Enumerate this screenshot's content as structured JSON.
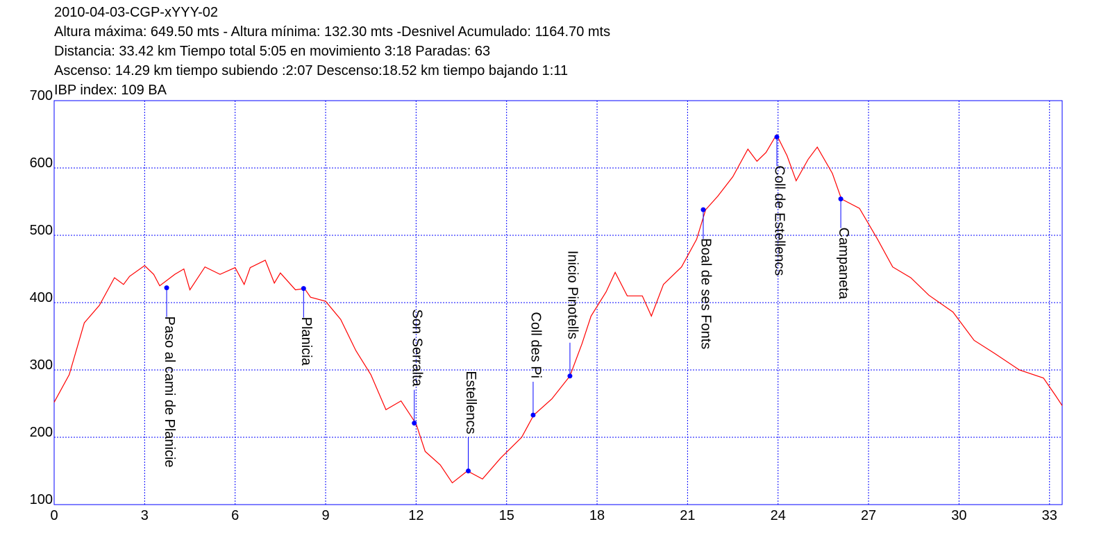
{
  "chart_data": {
    "type": "line",
    "title": "2010-04-03-CGP-xYYY-02",
    "subtitle_lines": [
      "Altura máxima: 649.50 mts - Altura mínima: 132.30 mts -Desnivel Acumulado: 1164.70 mts",
      "Distancia: 33.42 km  Tiempo total 5:05  en movimiento 3:18 Paradas: 63",
      "Ascenso: 14.29 km  tiempo subiendo :2:07  Descenso:18.52 km tiempo bajando 1:11",
      "IBP index: 109 BA"
    ],
    "x": [
      0,
      0.5,
      1.0,
      1.5,
      2.0,
      2.3,
      2.5,
      3.0,
      3.3,
      3.5,
      4.0,
      4.3,
      4.5,
      5.0,
      5.5,
      6.0,
      6.3,
      6.5,
      7.0,
      7.3,
      7.5,
      8.0,
      8.3,
      8.5,
      9.0,
      9.5,
      10.0,
      10.5,
      11.0,
      11.5,
      12.0,
      12.3,
      12.8,
      13.2,
      13.7,
      14.2,
      14.8,
      15.5,
      15.9,
      16.5,
      17.1,
      17.5,
      17.8,
      18.3,
      18.6,
      19.0,
      19.5,
      19.8,
      20.2,
      20.8,
      21.3,
      21.6,
      22.0,
      22.5,
      23.0,
      23.3,
      23.6,
      23.95,
      24.3,
      24.6,
      25.0,
      25.3,
      25.8,
      26.1,
      26.7,
      27.3,
      27.8,
      28.4,
      29.0,
      29.8,
      30.5,
      31.2,
      32.0,
      32.8,
      33.2,
      33.42
    ],
    "series": [
      {
        "name": "Altura",
        "color": "#ff0000",
        "values": [
          252,
          293,
          370,
          396,
          437,
          427,
          439,
          455,
          442,
          425,
          442,
          450,
          419,
          453,
          442,
          452,
          427,
          452,
          463,
          429,
          444,
          419,
          421,
          408,
          402,
          375,
          329,
          293,
          241,
          254,
          220,
          179,
          159,
          132.3,
          150,
          138,
          169,
          200,
          233,
          257,
          291,
          339,
          380,
          416,
          445,
          410,
          410,
          380,
          427,
          453,
          494,
          538,
          558,
          587,
          628,
          610,
          623,
          649.5,
          618,
          581,
          613,
          631,
          592,
          554,
          540,
          494,
          453,
          437,
          411,
          386,
          344,
          324,
          300,
          288,
          262,
          247
        ]
      }
    ],
    "annotations": [
      {
        "text": "Paso al cami de Planicie",
        "x": 3.73,
        "y": 422
      },
      {
        "text": "Planicia",
        "x": 8.27,
        "y": 421
      },
      {
        "text": "Son Serralta",
        "x": 11.94,
        "y": 221
      },
      {
        "text": "Estellencs",
        "x": 13.73,
        "y": 150
      },
      {
        "text": "Coll des Pi",
        "x": 15.88,
        "y": 233
      },
      {
        "text": "Inicio Pinotells",
        "x": 17.1,
        "y": 291
      },
      {
        "text": "Boal de ses Fonts",
        "x": 21.52,
        "y": 538
      },
      {
        "text": "Coll de Estellencs",
        "x": 23.96,
        "y": 646
      },
      {
        "text": "Campaneta",
        "x": 26.08,
        "y": 554
      }
    ],
    "annotation_color": "#0000ff",
    "xlim": [
      0,
      33.42
    ],
    "ylim": [
      100,
      700
    ],
    "xticks": [
      0,
      3,
      6,
      9,
      12,
      15,
      18,
      21,
      24,
      27,
      30,
      33
    ],
    "yticks": [
      100,
      200,
      300,
      400,
      500,
      600,
      700
    ],
    "grid": true,
    "axis_color": "#0000ff"
  }
}
